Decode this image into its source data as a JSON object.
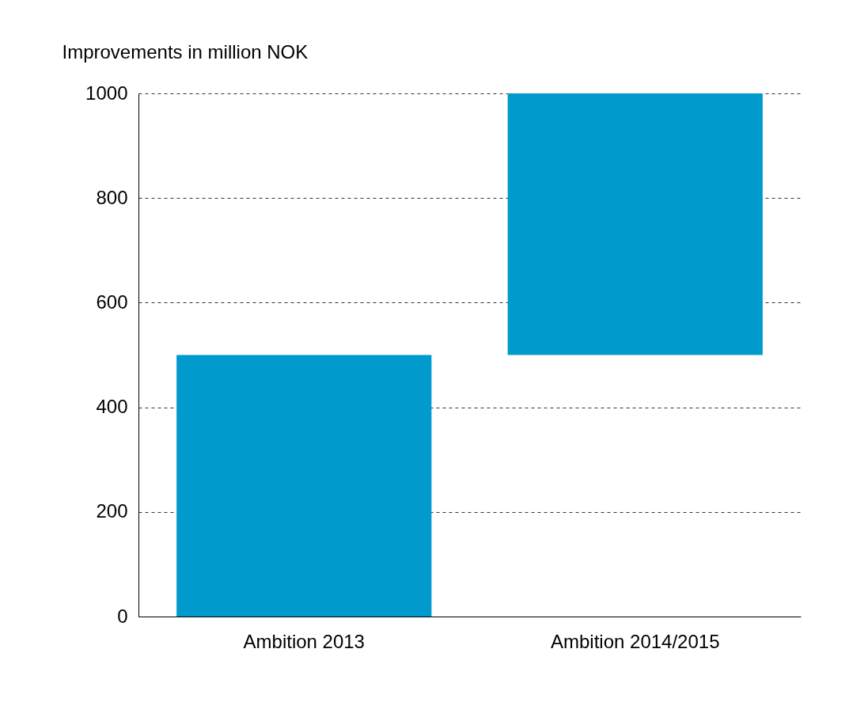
{
  "chart_data": {
    "type": "bar",
    "ylabel": "Improvements in million NOK",
    "categories": [
      "Ambition 2013",
      "Ambition 2014/2015"
    ],
    "values": [
      500,
      500
    ],
    "base": [
      0,
      500
    ],
    "color": "#009bcc",
    "ylim": [
      0,
      1000
    ],
    "yticks": [
      0,
      200,
      400,
      600,
      800,
      1000
    ],
    "grid": "y"
  }
}
